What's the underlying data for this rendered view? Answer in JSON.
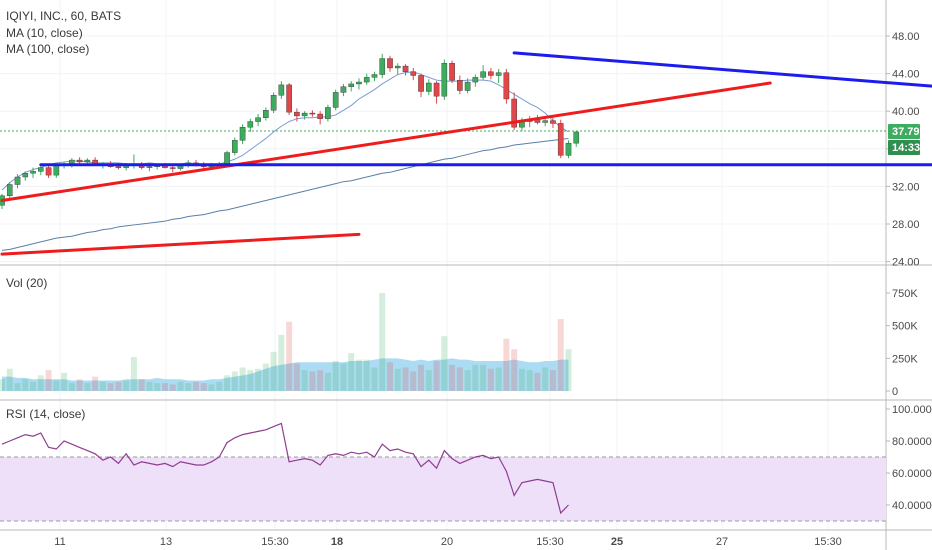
{
  "header": {
    "title": "IQIYI, INC., 60, BATS",
    "ma10": "MA (10, close)",
    "ma100": "MA (100, close)"
  },
  "panes": {
    "volume_title": "Vol (20)",
    "rsi_title": "RSI (14, close)"
  },
  "price_tags": {
    "last_price": "37.79",
    "countdown": "14:33"
  },
  "colors": {
    "up": "#3eac5e",
    "down": "#e0474b",
    "ma10": "#7b9bd1",
    "ma100": "#5a7fa8",
    "trend_red": "#ee1c1c",
    "trend_blue": "#1c1cee",
    "rsi": "#8e3d8e",
    "rsi_band": "#efe0fa",
    "last_price_tag": "#3eac5e",
    "countdown_tag": "#2f8f4e",
    "vol_ma_fill": "#8fd0f0"
  },
  "chart_data": [
    {
      "type": "candlestick",
      "title": "IQIYI, INC., 60, BATS",
      "x_ticks": [
        "11",
        "13",
        "15:30",
        "18",
        "20",
        "15:30",
        "25",
        "27",
        "15:30"
      ],
      "y_ticks": [
        "48.00",
        "44.00",
        "40.00",
        "36.00",
        "32.00",
        "28.00",
        "24.00"
      ],
      "ylim": [
        24,
        50
      ],
      "last_price": 37.79,
      "series": [
        {
          "name": "MA (10, close)",
          "values": [
            31.6,
            32.4,
            33.0,
            33.5,
            33.8,
            34.0,
            34.3,
            34.5,
            34.6,
            34.7,
            34.7,
            34.6,
            34.5,
            34.5,
            34.5,
            34.5,
            34.4,
            34.4,
            34.4,
            34.5,
            34.4,
            34.4,
            34.4,
            34.4,
            34.5,
            34.4,
            34.4,
            34.4,
            34.4,
            34.6,
            34.9,
            35.3,
            35.9,
            36.5,
            37.1,
            37.8,
            38.4,
            38.9,
            39.2,
            39.3,
            39.3,
            39.4,
            39.4,
            39.6,
            40.1,
            40.6,
            41.3,
            41.8,
            42.3,
            42.9,
            43.4,
            43.9,
            44.1,
            44.2,
            43.9,
            43.6,
            43.3,
            43.2,
            43.2,
            43.2,
            43.3,
            43.3,
            43.3,
            43.2,
            42.8,
            42.3,
            41.8,
            41.3,
            40.8,
            40.4,
            39.8,
            39.0,
            38.3,
            37.8
          ]
        },
        {
          "name": "MA (100, close)",
          "values": [
            25.2,
            25.3,
            25.5,
            25.7,
            25.9,
            26.1,
            26.3,
            26.5,
            26.6,
            26.7,
            26.9,
            27.1,
            27.2,
            27.4,
            27.5,
            27.7,
            27.8,
            27.9,
            28.0,
            28.1,
            28.2,
            28.3,
            28.5,
            28.6,
            28.8,
            28.9,
            29.0,
            29.2,
            29.4,
            29.5,
            29.7,
            29.9,
            30.1,
            30.3,
            30.5,
            30.7,
            30.9,
            31.1,
            31.3,
            31.5,
            31.7,
            31.9,
            32.1,
            32.3,
            32.5,
            32.6,
            32.8,
            33.0,
            33.2,
            33.4,
            33.5,
            33.7,
            33.9,
            34.1,
            34.3,
            34.5,
            34.7,
            34.9,
            35.0,
            35.2,
            35.4,
            35.6,
            35.8,
            35.9,
            36.1,
            36.2,
            36.4,
            36.5,
            36.6,
            36.7,
            36.8,
            36.9,
            37.0,
            37.1
          ]
        }
      ],
      "candles": [
        [
          30.0,
          31.2,
          29.6,
          31.0
        ],
        [
          31.0,
          32.4,
          30.6,
          32.2
        ],
        [
          32.2,
          33.3,
          31.8,
          33.0
        ],
        [
          33.0,
          33.6,
          32.6,
          33.4
        ],
        [
          33.4,
          34.0,
          32.9,
          33.6
        ],
        [
          33.6,
          34.3,
          33.2,
          34.0
        ],
        [
          34.0,
          34.2,
          32.9,
          33.2
        ],
        [
          33.2,
          34.4,
          32.9,
          34.2
        ],
        [
          34.2,
          34.6,
          33.9,
          34.4
        ],
        [
          34.4,
          35.0,
          34.0,
          34.8
        ],
        [
          34.8,
          35.1,
          34.3,
          34.6
        ],
        [
          34.6,
          35.0,
          34.2,
          34.8
        ],
        [
          34.8,
          35.1,
          34.2,
          34.3
        ],
        [
          34.3,
          34.6,
          33.9,
          34.4
        ],
        [
          34.4,
          34.7,
          34.0,
          34.1
        ],
        [
          34.1,
          34.5,
          33.8,
          34.0
        ],
        [
          34.0,
          34.5,
          33.7,
          34.2
        ],
        [
          34.2,
          35.4,
          33.9,
          34.3
        ],
        [
          34.3,
          34.6,
          33.8,
          34.0
        ],
        [
          34.0,
          34.3,
          33.6,
          34.1
        ],
        [
          34.1,
          34.4,
          33.8,
          34.2
        ],
        [
          34.2,
          34.5,
          33.9,
          34.0
        ],
        [
          34.0,
          34.3,
          33.5,
          33.9
        ],
        [
          33.9,
          34.4,
          33.7,
          34.2
        ],
        [
          34.2,
          34.8,
          34.0,
          34.5
        ],
        [
          34.5,
          34.8,
          34.1,
          34.3
        ],
        [
          34.3,
          34.6,
          33.9,
          34.1
        ],
        [
          34.1,
          34.5,
          33.8,
          34.2
        ],
        [
          34.2,
          34.6,
          34.0,
          34.4
        ],
        [
          34.4,
          35.8,
          34.2,
          35.6
        ],
        [
          35.6,
          37.2,
          35.3,
          36.9
        ],
        [
          36.9,
          38.6,
          36.5,
          38.3
        ],
        [
          38.3,
          39.2,
          37.8,
          38.9
        ],
        [
          38.9,
          39.7,
          38.4,
          39.3
        ],
        [
          39.3,
          40.4,
          39.0,
          40.1
        ],
        [
          40.1,
          42.0,
          39.8,
          41.7
        ],
        [
          41.7,
          43.2,
          41.3,
          42.8
        ],
        [
          42.8,
          43.0,
          39.6,
          39.9
        ],
        [
          39.9,
          40.3,
          38.9,
          39.5
        ],
        [
          39.5,
          40.0,
          39.1,
          39.8
        ],
        [
          39.8,
          40.1,
          39.4,
          39.7
        ],
        [
          39.7,
          40.0,
          38.6,
          39.2
        ],
        [
          39.2,
          40.7,
          38.9,
          40.4
        ],
        [
          40.4,
          42.3,
          40.1,
          42.0
        ],
        [
          42.0,
          42.9,
          41.6,
          42.6
        ],
        [
          42.6,
          43.2,
          42.1,
          42.9
        ],
        [
          42.9,
          43.5,
          42.3,
          43.1
        ],
        [
          43.1,
          44.0,
          42.8,
          43.6
        ],
        [
          43.6,
          44.2,
          43.2,
          43.9
        ],
        [
          43.9,
          46.1,
          43.5,
          45.6
        ],
        [
          45.6,
          45.9,
          44.2,
          44.6
        ],
        [
          44.6,
          45.1,
          43.9,
          44.8
        ],
        [
          44.8,
          45.0,
          43.8,
          44.2
        ],
        [
          44.2,
          44.6,
          43.3,
          43.8
        ],
        [
          43.8,
          44.0,
          41.5,
          42.1
        ],
        [
          42.1,
          43.4,
          41.7,
          43.0
        ],
        [
          43.0,
          43.2,
          40.8,
          41.6
        ],
        [
          41.6,
          45.5,
          41.2,
          45.1
        ],
        [
          45.1,
          45.4,
          43.0,
          43.3
        ],
        [
          43.3,
          43.8,
          41.8,
          42.2
        ],
        [
          42.2,
          43.5,
          41.9,
          43.1
        ],
        [
          43.1,
          43.9,
          42.6,
          43.6
        ],
        [
          43.6,
          44.9,
          43.3,
          44.2
        ],
        [
          44.2,
          44.6,
          43.4,
          43.8
        ],
        [
          43.8,
          44.5,
          43.0,
          44.1
        ],
        [
          44.1,
          44.5,
          40.8,
          41.3
        ],
        [
          41.3,
          42.0,
          38.0,
          38.3
        ],
        [
          38.3,
          39.3,
          37.9,
          38.9
        ],
        [
          38.9,
          39.5,
          38.3,
          39.1
        ],
        [
          39.1,
          39.6,
          38.6,
          38.8
        ],
        [
          38.8,
          39.3,
          38.4,
          39.0
        ],
        [
          39.0,
          39.4,
          38.2,
          38.7
        ],
        [
          38.7,
          39.1,
          35.0,
          35.3
        ],
        [
          35.3,
          36.9,
          35.0,
          36.6
        ],
        [
          36.6,
          37.9,
          36.2,
          37.79
        ]
      ],
      "trendlines": [
        {
          "color": "trend_red",
          "from": {
            "idx": 0,
            "price": 30.5
          },
          "to": {
            "idx": 99,
            "price": 43.0
          }
        },
        {
          "color": "trend_red",
          "from": {
            "idx": 0,
            "price": 24.8
          },
          "to": {
            "idx": 46,
            "price": 26.9
          }
        },
        {
          "color": "trend_blue",
          "from": {
            "idx": 66,
            "price": 46.2
          },
          "to": {
            "idx": 136,
            "price": 41.6
          }
        },
        {
          "color": "trend_blue",
          "from": {
            "idx": 5,
            "price": 34.3
          },
          "to": {
            "idx": 136,
            "price": 34.3
          }
        }
      ]
    },
    {
      "type": "bar",
      "title": "Vol (20)",
      "y_ticks": [
        "750K",
        "500K",
        "250K",
        "0"
      ],
      "ylim": [
        0,
        800000
      ],
      "values": [
        90000,
        170000,
        60000,
        90000,
        70000,
        120000,
        160000,
        80000,
        140000,
        60000,
        90000,
        60000,
        110000,
        70000,
        60000,
        70000,
        80000,
        260000,
        90000,
        70000,
        60000,
        60000,
        50000,
        70000,
        60000,
        70000,
        60000,
        50000,
        70000,
        120000,
        150000,
        180000,
        160000,
        170000,
        210000,
        300000,
        430000,
        530000,
        210000,
        160000,
        150000,
        160000,
        140000,
        230000,
        210000,
        290000,
        240000,
        240000,
        180000,
        750000,
        220000,
        170000,
        180000,
        150000,
        200000,
        160000,
        230000,
        420000,
        200000,
        180000,
        160000,
        200000,
        200000,
        170000,
        180000,
        400000,
        320000,
        170000,
        160000,
        140000,
        180000,
        160000,
        550000,
        320000
      ],
      "ma": [
        110000,
        110000,
        100000,
        100000,
        90000,
        90000,
        90000,
        90000,
        90000,
        80000,
        80000,
        80000,
        80000,
        80000,
        80000,
        80000,
        90000,
        90000,
        90000,
        90000,
        100000,
        90000,
        90000,
        90000,
        80000,
        80000,
        80000,
        90000,
        90000,
        100000,
        110000,
        120000,
        130000,
        150000,
        170000,
        190000,
        200000,
        210000,
        220000,
        220000,
        220000,
        220000,
        220000,
        220000,
        220000,
        230000,
        230000,
        230000,
        240000,
        250000,
        250000,
        250000,
        240000,
        230000,
        240000,
        230000,
        240000,
        240000,
        250000,
        240000,
        240000,
        230000,
        230000,
        230000,
        230000,
        230000,
        240000,
        230000,
        220000,
        220000,
        230000,
        230000,
        240000,
        240000
      ]
    },
    {
      "type": "line",
      "title": "RSI (14, close)",
      "y_ticks": [
        "100.0000",
        "80.0000",
        "60.0000",
        "40.0000"
      ],
      "ylim": [
        25,
        103
      ],
      "bands": [
        30,
        70
      ],
      "values": [
        78,
        80,
        82,
        84,
        83,
        85,
        76,
        75,
        80,
        78,
        76,
        74,
        72,
        68,
        70,
        66,
        72,
        65,
        67,
        66,
        65,
        66,
        64,
        67,
        66,
        65,
        65,
        67,
        70,
        79,
        82,
        84,
        85,
        86,
        87,
        89,
        91,
        67,
        68,
        69,
        68,
        65,
        71,
        72,
        71,
        73,
        72,
        73,
        70,
        78,
        74,
        75,
        73,
        72,
        64,
        68,
        63,
        74,
        69,
        66,
        68,
        70,
        71,
        69,
        70,
        61,
        46,
        54,
        55,
        56,
        55,
        54,
        35,
        40
      ]
    }
  ]
}
